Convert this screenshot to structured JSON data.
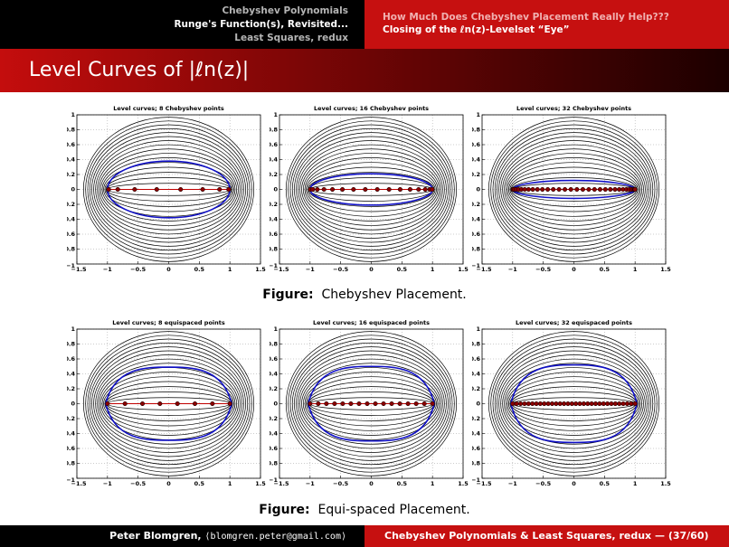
{
  "header": {
    "sections_left": [
      "Chebyshev Polynomials",
      "Runge's Function(s), Revisited...",
      "Least Squares, redux"
    ],
    "sections_right": [
      "How Much Does Chebyshev Placement Really Help???",
      "Closing of the ℓn(z)-Levelset “Eye”"
    ]
  },
  "slide_title": "Level Curves of |ℓn(z)|",
  "captions": {
    "top_label": "Figure:",
    "top_text": "Chebyshev Placement.",
    "bottom_label": "Figure:",
    "bottom_text": "Equi-spaced Placement."
  },
  "footer": {
    "author": "Peter Blomgren,",
    "email": "⟨blomgren.peter@gmail.com⟩",
    "course": "Chebyshev Polynomials & Least Squares, redux",
    "page": "— (37/60)"
  },
  "colors": {
    "accent_red": "#c61010",
    "curve_blue": "#1010c8",
    "node_red": "#8b0000",
    "contour_black": "#000000"
  },
  "chart_data": [
    {
      "type": "contour",
      "title": "Level curves; 8 Chebyshev points",
      "placement": "chebyshev",
      "n": 8,
      "xlim": [
        -1.5,
        1.5
      ],
      "ylim": [
        -1,
        1
      ],
      "x_ticks": [
        "−1.5",
        "−1",
        "−0.5",
        "0",
        "0.5",
        "1",
        "1.5"
      ],
      "y_ticks": [
        "−1",
        "−0.8",
        "−0.6",
        "−0.4",
        "−0.2",
        "0",
        "0.2",
        "0.4",
        "0.6",
        "0.8",
        "1"
      ],
      "blue_curve_halfheight": 0.38,
      "grid": true
    },
    {
      "type": "contour",
      "title": "Level curves; 16 Chebyshev points",
      "placement": "chebyshev",
      "n": 16,
      "xlim": [
        -1.5,
        1.5
      ],
      "ylim": [
        -1,
        1
      ],
      "x_ticks": [
        "−1.5",
        "−1",
        "−0.5",
        "0",
        "0.5",
        "1",
        "1.5"
      ],
      "y_ticks": [
        "−1",
        "−0.8",
        "−0.6",
        "−0.4",
        "−0.2",
        "0",
        "0.2",
        "0.4",
        "0.6",
        "0.8",
        "1"
      ],
      "blue_curve_halfheight": 0.21,
      "grid": true
    },
    {
      "type": "contour",
      "title": "Level curves; 32 Chebyshev points",
      "placement": "chebyshev",
      "n": 32,
      "xlim": [
        -1.5,
        1.5
      ],
      "ylim": [
        -1,
        1
      ],
      "x_ticks": [
        "−1.5",
        "−1",
        "−0.5",
        "0",
        "0.5",
        "1",
        "1.5"
      ],
      "y_ticks": [
        "−1",
        "−0.8",
        "−0.6",
        "−0.4",
        "−0.2",
        "0",
        "0.2",
        "0.4",
        "0.6",
        "0.8",
        "1"
      ],
      "blue_curve_halfheight": 0.12,
      "grid": true
    },
    {
      "type": "contour",
      "title": "Level curves; 8 equispaced points",
      "placement": "equispaced",
      "n": 8,
      "xlim": [
        -1.5,
        1.5
      ],
      "ylim": [
        -1,
        1
      ],
      "x_ticks": [
        "−1.5",
        "−1",
        "−0.5",
        "0",
        "0.5",
        "1",
        "1.5"
      ],
      "y_ticks": [
        "−1",
        "−0.8",
        "−0.6",
        "−0.4",
        "−0.2",
        "0",
        "0.2",
        "0.4",
        "0.6",
        "0.8",
        "1"
      ],
      "blue_curve_halfheight": 0.49,
      "grid": true
    },
    {
      "type": "contour",
      "title": "Level curves; 16 equispaced points",
      "placement": "equispaced",
      "n": 16,
      "xlim": [
        -1.5,
        1.5
      ],
      "ylim": [
        -1,
        1
      ],
      "x_ticks": [
        "−1.5",
        "−1",
        "−0.5",
        "0",
        "0.5",
        "1",
        "1.5"
      ],
      "y_ticks": [
        "−1",
        "−0.8",
        "−0.6",
        "−0.4",
        "−0.2",
        "0",
        "0.2",
        "0.4",
        "0.6",
        "0.8",
        "1"
      ],
      "blue_curve_halfheight": 0.5,
      "grid": true
    },
    {
      "type": "contour",
      "title": "Level curves; 32 equispaced points",
      "placement": "equispaced",
      "n": 32,
      "xlim": [
        -1.5,
        1.5
      ],
      "ylim": [
        -1,
        1
      ],
      "x_ticks": [
        "−1.5",
        "−1",
        "−0.5",
        "0",
        "0.5",
        "1",
        "1.5"
      ],
      "y_ticks": [
        "−1",
        "−0.8",
        "−0.6",
        "−0.4",
        "−0.2",
        "0",
        "0.2",
        "0.4",
        "0.6",
        "0.8",
        "1"
      ],
      "blue_curve_halfheight": 0.52,
      "grid": true
    }
  ]
}
